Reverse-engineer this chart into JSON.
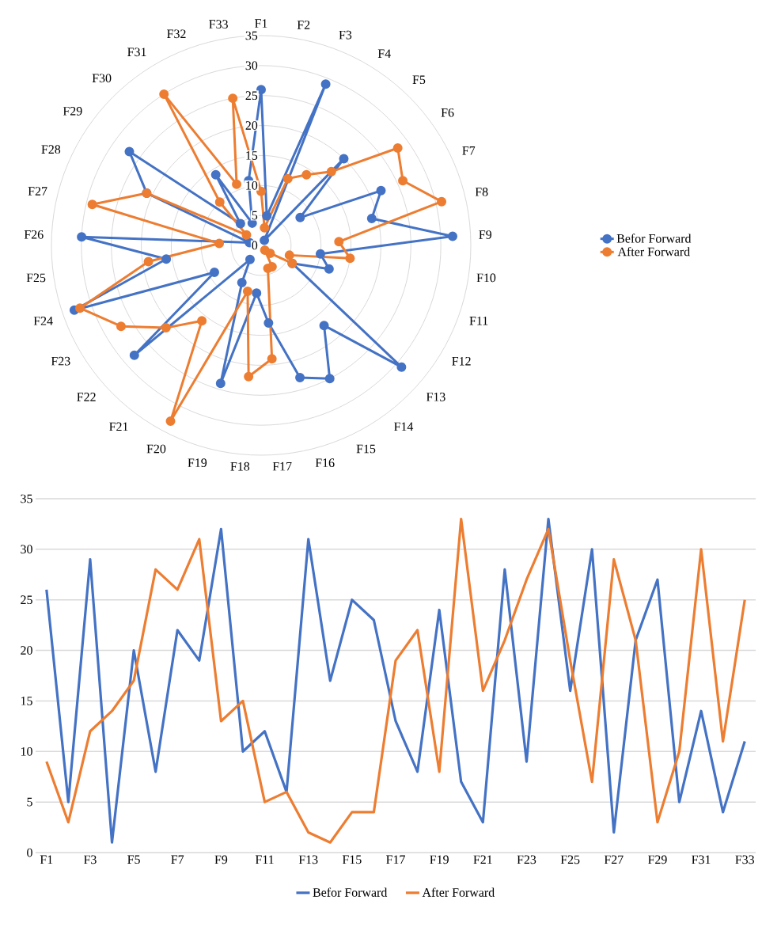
{
  "chart_data": [
    {
      "type": "radar",
      "categories": [
        "F1",
        "F2",
        "F3",
        "F4",
        "F5",
        "F6",
        "F7",
        "F8",
        "F9",
        "F10",
        "F11",
        "F12",
        "F13",
        "F14",
        "F15",
        "F16",
        "F17",
        "F18",
        "F19",
        "F20",
        "F21",
        "F22",
        "F23",
        "F24",
        "F25",
        "F26",
        "F27",
        "F28",
        "F29",
        "F30",
        "F31",
        "F32",
        "F33"
      ],
      "series": [
        {
          "name": "Befor Forward",
          "color": "#4472c4",
          "values": [
            26,
            5,
            29,
            1,
            20,
            8,
            22,
            19,
            32,
            10,
            12,
            6,
            31,
            17,
            25,
            23,
            13,
            8,
            24,
            7,
            3,
            28,
            9,
            33,
            16,
            30,
            2,
            21,
            27,
            5,
            14,
            4,
            11
          ]
        },
        {
          "name": "After Forward",
          "color": "#ed7d31",
          "values": [
            9,
            3,
            12,
            14,
            17,
            28,
            26,
            31,
            13,
            15,
            5,
            6,
            2,
            1,
            4,
            4,
            19,
            22,
            8,
            33,
            16,
            21,
            27,
            32,
            19,
            7,
            29,
            21,
            3,
            10,
            30,
            11,
            25
          ]
        }
      ],
      "ylim": [
        0,
        35
      ],
      "yticks": [
        0,
        5,
        10,
        15,
        20,
        25,
        30,
        35
      ],
      "grid": "y",
      "legend": "right",
      "marker": "circle"
    },
    {
      "type": "line",
      "categories": [
        "F1",
        null,
        "F3",
        null,
        "F5",
        null,
        "F7",
        null,
        "F9",
        null,
        "F11",
        null,
        "F13",
        null,
        "F15",
        null,
        "F17",
        null,
        "F19",
        null,
        "F21",
        null,
        "F23",
        null,
        "F25",
        null,
        "F27",
        null,
        "F29",
        null,
        "F31",
        null,
        "F33"
      ],
      "series": [
        {
          "name": "Befor Forward",
          "color": "#4472c4",
          "values": [
            26,
            5,
            29,
            1,
            20,
            8,
            22,
            19,
            32,
            10,
            12,
            6,
            31,
            17,
            25,
            23,
            13,
            8,
            24,
            7,
            3,
            28,
            9,
            33,
            16,
            30,
            2,
            21,
            27,
            5,
            14,
            4,
            11
          ]
        },
        {
          "name": "After Forward",
          "color": "#ed7d31",
          "values": [
            9,
            3,
            12,
            14,
            17,
            28,
            26,
            31,
            13,
            15,
            5,
            6,
            2,
            1,
            4,
            4,
            19,
            22,
            8,
            33,
            16,
            21,
            27,
            32,
            19,
            7,
            29,
            21,
            3,
            10,
            30,
            11,
            25
          ]
        }
      ],
      "ylim": [
        0,
        35
      ],
      "yticks": [
        0,
        5,
        10,
        15,
        20,
        25,
        30,
        35
      ],
      "grid": "y",
      "legend": "bottom"
    }
  ]
}
